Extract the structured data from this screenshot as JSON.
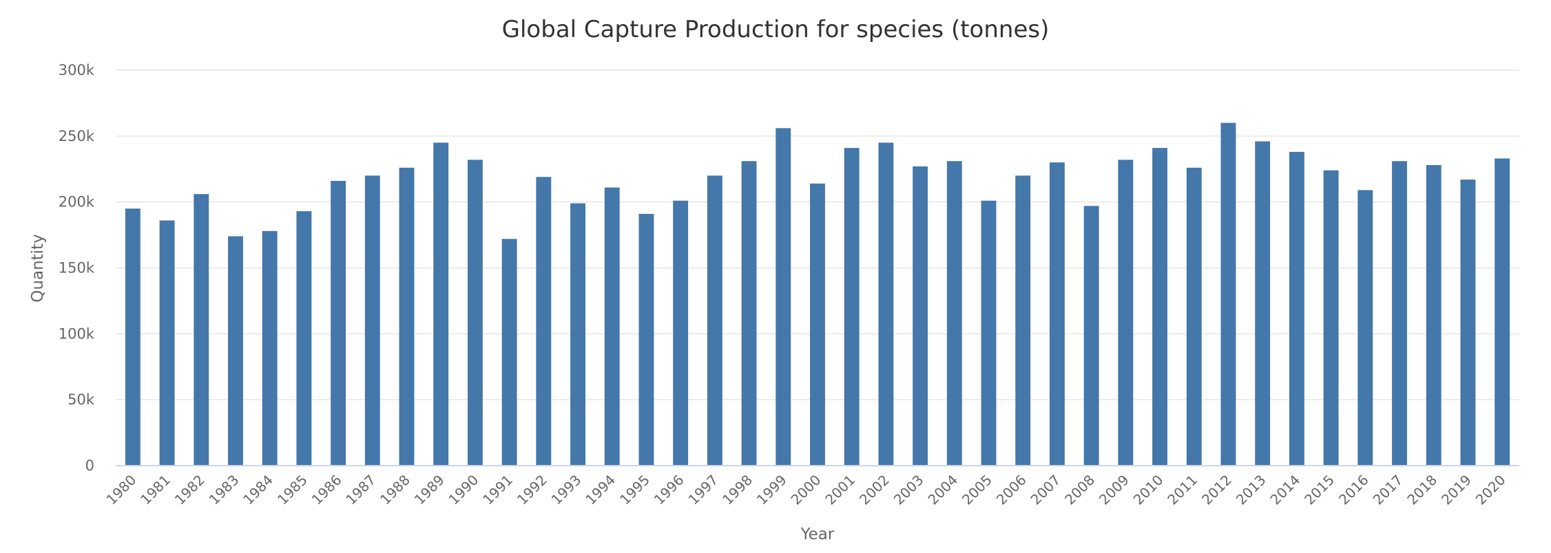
{
  "chart_data": {
    "type": "bar",
    "title": "Global Capture Production for species (tonnes)",
    "xlabel": "Year",
    "ylabel": "Quantity",
    "ylim": [
      0,
      300000
    ],
    "yticks": [
      {
        "value": 0,
        "label": "0"
      },
      {
        "value": 50000,
        "label": "50k"
      },
      {
        "value": 100000,
        "label": "100k"
      },
      {
        "value": 150000,
        "label": "150k"
      },
      {
        "value": 200000,
        "label": "200k"
      },
      {
        "value": 250000,
        "label": "250k"
      },
      {
        "value": 300000,
        "label": "300k"
      }
    ],
    "grid": true,
    "legend": "none",
    "bar_color": "#4477aa",
    "categories": [
      "1980",
      "1981",
      "1982",
      "1983",
      "1984",
      "1985",
      "1986",
      "1987",
      "1988",
      "1989",
      "1990",
      "1991",
      "1992",
      "1993",
      "1994",
      "1995",
      "1996",
      "1997",
      "1998",
      "1999",
      "2000",
      "2001",
      "2002",
      "2003",
      "2004",
      "2005",
      "2006",
      "2007",
      "2008",
      "2009",
      "2010",
      "2011",
      "2012",
      "2013",
      "2014",
      "2015",
      "2016",
      "2017",
      "2018",
      "2019",
      "2020"
    ],
    "values": [
      195000,
      186000,
      206000,
      174000,
      178000,
      193000,
      216000,
      220000,
      226000,
      245000,
      232000,
      172000,
      219000,
      199000,
      211000,
      191000,
      201000,
      220000,
      231000,
      256000,
      214000,
      241000,
      245000,
      227000,
      231000,
      201000,
      220000,
      230000,
      197000,
      232000,
      241000,
      226000,
      260000,
      246000,
      238000,
      224000,
      209000,
      231000,
      228000,
      217000,
      233000
    ]
  }
}
